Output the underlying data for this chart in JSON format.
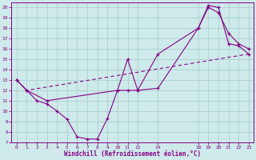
{
  "xlabel": "Windchill (Refroidissement éolien,°C)",
  "background_color": "#ceeaea",
  "grid_color": "#aacfcf",
  "line_color": "#880088",
  "xlim": [
    -0.5,
    23.5
  ],
  "ylim": [
    7,
    20.5
  ],
  "xticks": [
    0,
    1,
    2,
    3,
    4,
    5,
    6,
    7,
    8,
    9,
    10,
    11,
    12,
    14,
    18,
    19,
    20,
    21,
    22,
    23
  ],
  "yticks": [
    7,
    8,
    9,
    10,
    11,
    12,
    13,
    14,
    15,
    16,
    17,
    18,
    19,
    20
  ],
  "line1_x": [
    0,
    1,
    2,
    3,
    4,
    5,
    6,
    7,
    8,
    9,
    10,
    11,
    12,
    14,
    18,
    19,
    20,
    21,
    22,
    23
  ],
  "line1_y": [
    13,
    12,
    11,
    10.7,
    10.0,
    9.2,
    7.5,
    7.3,
    7.3,
    9.3,
    12.0,
    12.0,
    12.0,
    12.2,
    18.0,
    20.2,
    20.0,
    16.5,
    16.3,
    15.5
  ],
  "line2_x": [
    0,
    1,
    3,
    10,
    11,
    12,
    14,
    18,
    19,
    20,
    21,
    22,
    23
  ],
  "line2_y": [
    13,
    12,
    11,
    12.0,
    15.0,
    12.0,
    15.5,
    18.0,
    20.0,
    19.5,
    17.5,
    16.5,
    16.0
  ],
  "line3_x": [
    0,
    1,
    23
  ],
  "line3_y": [
    13,
    12,
    15.5
  ]
}
